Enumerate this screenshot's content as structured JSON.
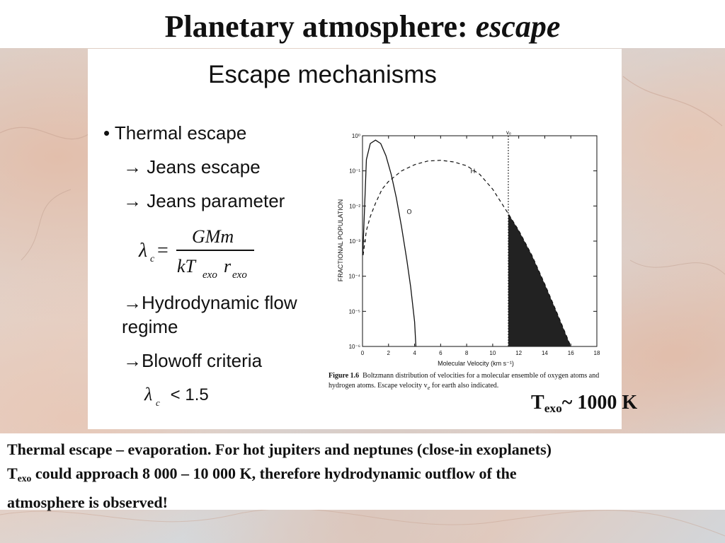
{
  "title": {
    "main": "Planetary atmosphere: ",
    "emph": "escape"
  },
  "panel": {
    "heading": "Escape mechanisms",
    "bullets": {
      "thermal": "• Thermal escape",
      "jeans_escape": "→ Jeans escape",
      "jeans_param": "→ Jeans parameter",
      "hydro_1": "→Hydrodynamic flow",
      "hydro_2": "regime",
      "blowoff": "→Blowoff criteria"
    },
    "formula": {
      "lhs_symbol": "λ",
      "lhs_sub": "c",
      "equals": "=",
      "numerator": "GMm",
      "denominator": {
        "k": "kT",
        "exo1": "exo",
        "r": "r",
        "exo2": "exo"
      }
    },
    "criterion": {
      "symbol": "λ",
      "sub": "c",
      "rest": " < 1.5"
    }
  },
  "figure_caption": {
    "label": "Figure 1.6",
    "text": "Boltzmann distribution of velocities for a molecular ensemble of oxygen atoms and hydrogen atoms. Escape velocity v",
    "sub": "e",
    "tail": " for earth also indicated."
  },
  "texo_note": {
    "T": "T",
    "sub": "exo",
    "rest": "~ 1000 K"
  },
  "bottom": {
    "line1": "Thermal escape – evaporation. For hot jupiters and neptunes (close-in exoplanets)",
    "T": "T",
    "sub": "exo",
    "line2": " could approach 8 000 – 10 000 K,  therefore hydrodynamic outflow of the",
    "line3": "atmosphere is observed!"
  },
  "chart_data": {
    "type": "line",
    "xlabel": "Molecular Velocity (km s⁻¹)",
    "ylabel": "FRACTIONAL POPULATION",
    "xlim": [
      0,
      18
    ],
    "ylim_log10": [
      -6,
      0
    ],
    "x_ticks": [
      "0",
      "2",
      "4",
      "6",
      "8",
      "10",
      "12",
      "14",
      "16",
      "18"
    ],
    "y_ticks": [
      "10⁰",
      "10⁻¹",
      "10⁻²",
      "10⁻³",
      "10⁻⁴",
      "10⁻⁵",
      "10⁻⁶"
    ],
    "escape_velocity": {
      "label": "vₑ",
      "x": 11.2
    },
    "series": [
      {
        "name": "O",
        "style": "solid",
        "x": [
          0.02,
          0.3,
          0.6,
          1.0,
          1.4,
          1.8,
          2.2,
          2.6,
          3.0,
          3.4,
          3.7,
          4.0,
          4.1
        ],
        "y": [
          0.0004,
          0.21,
          0.6,
          0.75,
          0.6,
          0.27,
          0.08,
          0.017,
          0.0025,
          0.0003,
          5e-05,
          5e-06,
          1e-06
        ]
      },
      {
        "name": "H",
        "style": "dashed",
        "x": [
          0.05,
          0.3,
          0.6,
          1.0,
          1.5,
          2.0,
          3.0,
          4.0,
          5.0,
          6.0,
          7.0,
          8.0,
          9.0,
          10.0,
          11.2,
          12.0,
          13.0,
          14.0,
          15.0,
          16.0
        ],
        "y": [
          0.0004,
          0.002,
          0.005,
          0.012,
          0.03,
          0.05,
          0.1,
          0.15,
          0.19,
          0.2,
          0.18,
          0.14,
          0.08,
          0.03,
          0.006,
          0.002,
          0.0004,
          6e-05,
          8e-06,
          1e-06
        ]
      }
    ],
    "shaded_region": "H tail beyond escape velocity",
    "series_labels": {
      "O": "O",
      "H": "H"
    }
  }
}
